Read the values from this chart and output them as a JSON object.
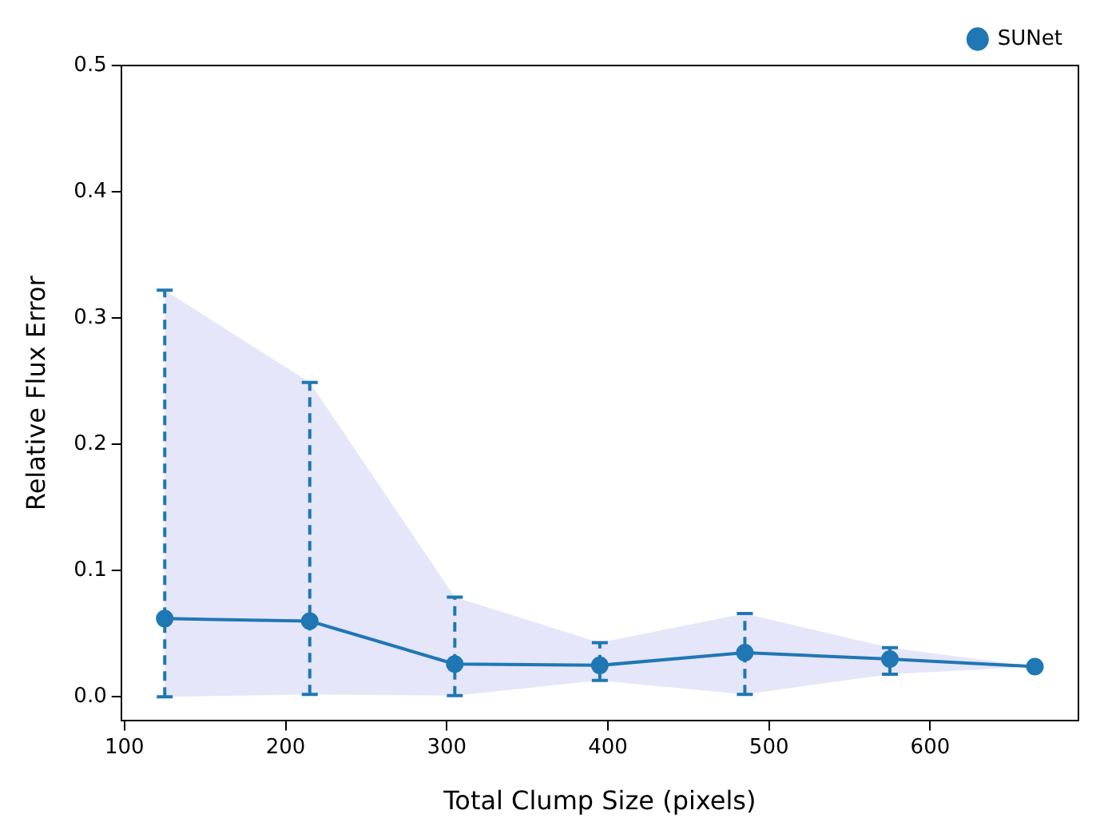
{
  "chart_data": {
    "type": "line",
    "xlabel": "Total Clump Size (pixels)",
    "ylabel": "Relative Flux Error",
    "x": [
      125,
      215,
      305,
      395,
      485,
      575,
      665
    ],
    "series": [
      {
        "name": "SUNet",
        "color": "#1f77b4",
        "values": [
          0.062,
          0.06,
          0.026,
          0.025,
          0.035,
          0.03,
          0.024
        ],
        "errors": [
          [
            0.0,
            0.322
          ],
          [
            0.002,
            0.249
          ],
          [
            0.001,
            0.079
          ],
          [
            0.013,
            0.043
          ],
          [
            0.002,
            0.066
          ],
          [
            0.018,
            0.039
          ],
          null
        ],
        "lower": [
          0.0,
          0.002,
          0.001,
          0.013,
          0.002,
          0.018,
          0.024
        ],
        "upper": [
          0.322,
          0.249,
          0.079,
          0.043,
          0.066,
          0.039,
          0.024
        ]
      }
    ],
    "xlim": [
      98,
      692
    ],
    "ylim": [
      -0.019,
      0.5
    ],
    "xticks": [
      100,
      200,
      300,
      400,
      500,
      600
    ],
    "yticks": [
      {
        "value": 0,
        "label": "0.0"
      },
      0.1,
      0.2,
      0.3,
      0.4,
      0.5
    ],
    "grid": false,
    "legend": "top right",
    "marker": "circle",
    "line_style": "solid"
  }
}
